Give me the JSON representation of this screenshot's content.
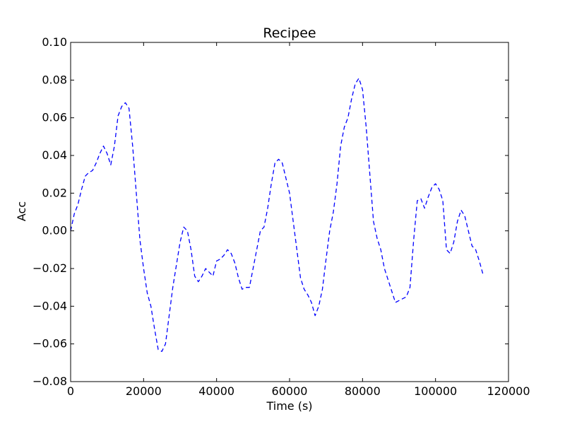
{
  "chart_data": {
    "type": "line",
    "title": "Recipee",
    "xlabel": "Time (s)",
    "ylabel": "Acc",
    "xlim": [
      0,
      120000
    ],
    "ylim": [
      -0.08,
      0.1
    ],
    "xticks": [
      0,
      20000,
      40000,
      60000,
      80000,
      100000,
      120000
    ],
    "xtick_labels": [
      "0",
      "20000",
      "40000",
      "60000",
      "80000",
      "100000",
      "120000"
    ],
    "yticks": [
      -0.08,
      -0.06,
      -0.04,
      -0.02,
      0.0,
      0.02,
      0.04,
      0.06,
      0.08,
      0.1
    ],
    "ytick_labels": [
      "−0.08",
      "−0.06",
      "−0.04",
      "−0.02",
      "0.00",
      "0.02",
      "0.04",
      "0.06",
      "0.08",
      "0.10"
    ],
    "grid": false,
    "line_color": "#0000ff",
    "line_style": "dashed",
    "series": [
      {
        "x": [
          0,
          1000,
          2000,
          3000,
          4000,
          5000,
          6000,
          7000,
          8000,
          9000,
          10000,
          11000,
          12000,
          13000,
          14000,
          15000,
          16000,
          17000,
          18000,
          19000,
          20000,
          21000,
          22000,
          23000,
          24000,
          25000,
          26000,
          27000,
          28000,
          29000,
          30000,
          31000,
          32000,
          33000,
          34000,
          35000,
          36000,
          37000,
          38000,
          39000,
          40000,
          41000,
          42000,
          43000,
          44000,
          45000,
          46000,
          47000,
          48000,
          49000,
          50000,
          51000,
          52000,
          53000,
          54000,
          55000,
          56000,
          57000,
          58000,
          59000,
          60000,
          61000,
          62000,
          63000,
          64000,
          65000,
          66000,
          67000,
          68000,
          69000,
          70000,
          71000,
          72000,
          73000,
          74000,
          75000,
          76000,
          77000,
          78000,
          79000,
          80000,
          81000,
          82000,
          83000,
          84000,
          85000,
          86000,
          87000,
          88000,
          89000,
          90000,
          91000,
          92000,
          93000,
          94000,
          95000,
          96000,
          97000,
          98000,
          99000,
          100000,
          101000,
          102000,
          103000,
          104000,
          105000,
          106000,
          107000,
          108000,
          109000,
          110000,
          111000,
          112000,
          113000
        ],
        "values": [
          0.0,
          0.009,
          0.014,
          0.022,
          0.029,
          0.031,
          0.032,
          0.036,
          0.041,
          0.045,
          0.041,
          0.035,
          0.045,
          0.061,
          0.066,
          0.068,
          0.065,
          0.045,
          0.02,
          -0.005,
          -0.02,
          -0.033,
          -0.04,
          -0.052,
          -0.063,
          -0.064,
          -0.06,
          -0.045,
          -0.03,
          -0.018,
          -0.006,
          0.002,
          0.0,
          -0.01,
          -0.024,
          -0.027,
          -0.024,
          -0.02,
          -0.022,
          -0.024,
          -0.016,
          -0.015,
          -0.013,
          -0.01,
          -0.012,
          -0.017,
          -0.025,
          -0.031,
          -0.03,
          -0.03,
          -0.02,
          -0.01,
          0.0,
          0.002,
          0.012,
          0.025,
          0.036,
          0.038,
          0.036,
          0.028,
          0.02,
          0.005,
          -0.01,
          -0.025,
          -0.031,
          -0.034,
          -0.038,
          -0.045,
          -0.04,
          -0.031,
          -0.015,
          0.0,
          0.01,
          0.025,
          0.045,
          0.055,
          0.06,
          0.07,
          0.078,
          0.081,
          0.075,
          0.055,
          0.03,
          0.005,
          -0.004,
          -0.01,
          -0.02,
          -0.026,
          -0.032,
          -0.038,
          -0.037,
          -0.036,
          -0.035,
          -0.03,
          -0.005,
          0.016,
          0.017,
          0.012,
          0.018,
          0.023,
          0.025,
          0.022,
          0.016,
          -0.01,
          -0.012,
          -0.006,
          0.005,
          0.011,
          0.008,
          0.0,
          -0.008,
          -0.01,
          -0.016,
          -0.023
        ]
      }
    ]
  }
}
